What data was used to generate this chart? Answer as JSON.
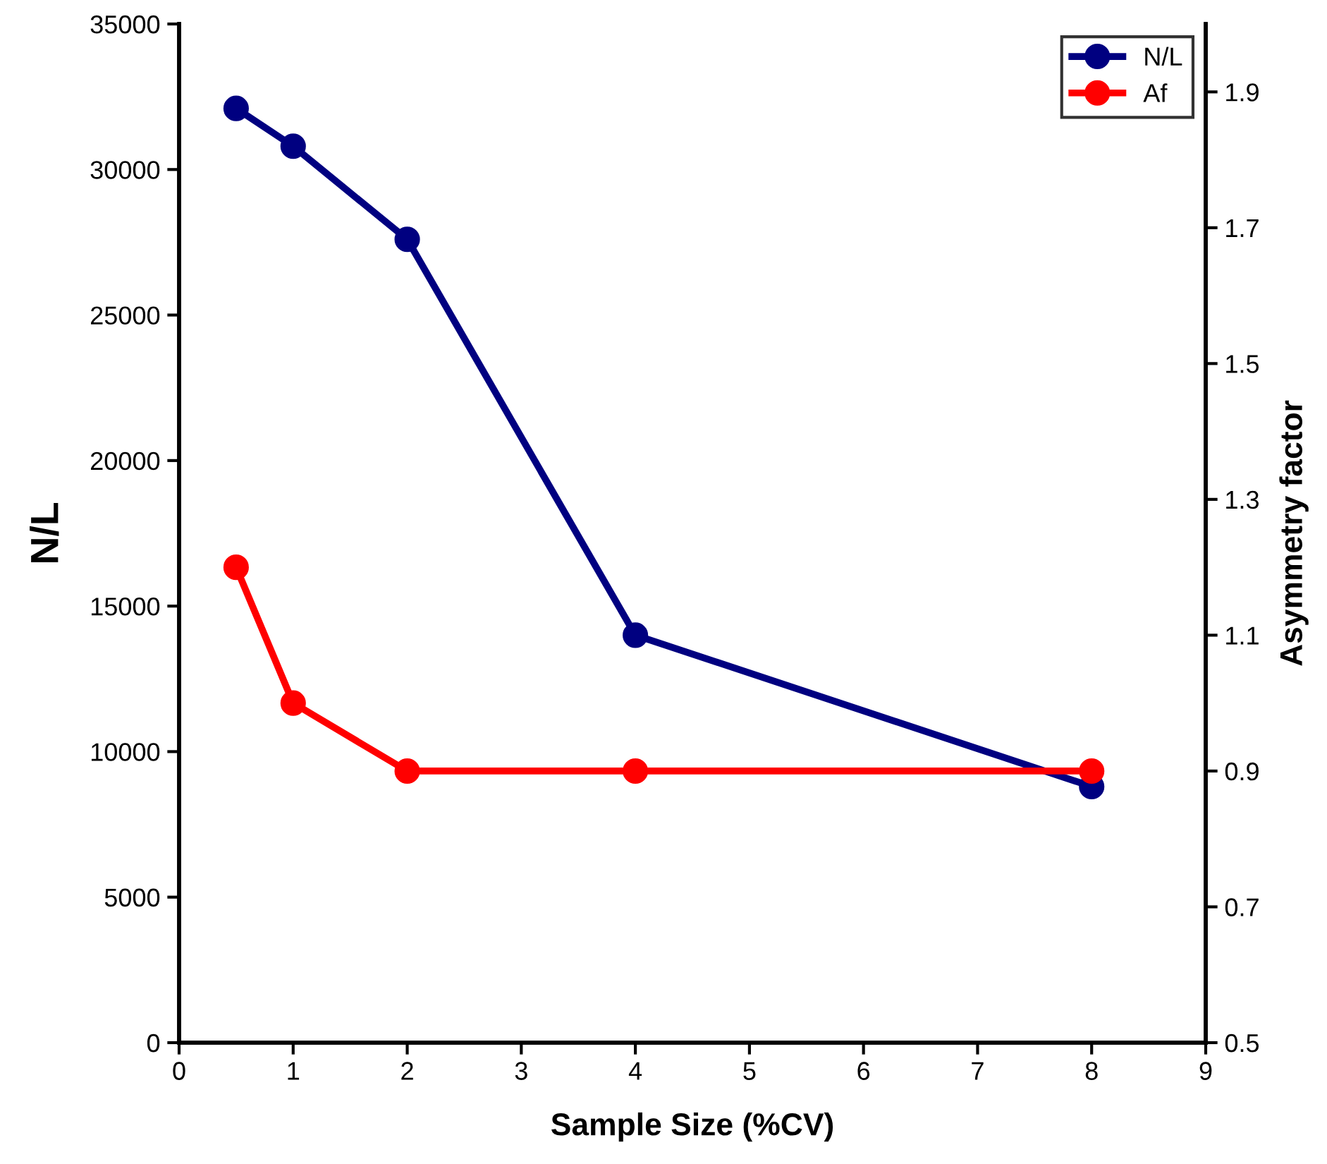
{
  "chart_data": {
    "type": "line",
    "xlabel": "Sample Size (%CV)",
    "ylabel": "N/L",
    "y2label": "Asymmetry factor",
    "x": [
      0.5,
      1,
      2,
      4,
      8
    ],
    "series": [
      {
        "name": "N/L",
        "color": "#000080",
        "values": [
          32100,
          30800,
          27600,
          14000,
          8800
        ]
      },
      {
        "name": "Af",
        "color": "#ff0000",
        "values": [
          1.2,
          1.0,
          0.9,
          0.9,
          0.9
        ],
        "axis": "y2"
      }
    ],
    "xlim": [
      0,
      9
    ],
    "xticks": [
      0,
      1,
      2,
      3,
      4,
      5,
      6,
      7,
      8,
      9
    ],
    "ylim": [
      0,
      35000
    ],
    "yticks": [
      0,
      5000,
      10000,
      15000,
      20000,
      25000,
      30000,
      35000
    ],
    "y2lim": [
      0.5,
      2.0
    ],
    "y2ticks": [
      0.5,
      0.7,
      0.9,
      1.1,
      1.3,
      1.5,
      1.7,
      1.9
    ],
    "marker": "circle",
    "line_style": "solid",
    "grid": false,
    "legend": "top right"
  }
}
